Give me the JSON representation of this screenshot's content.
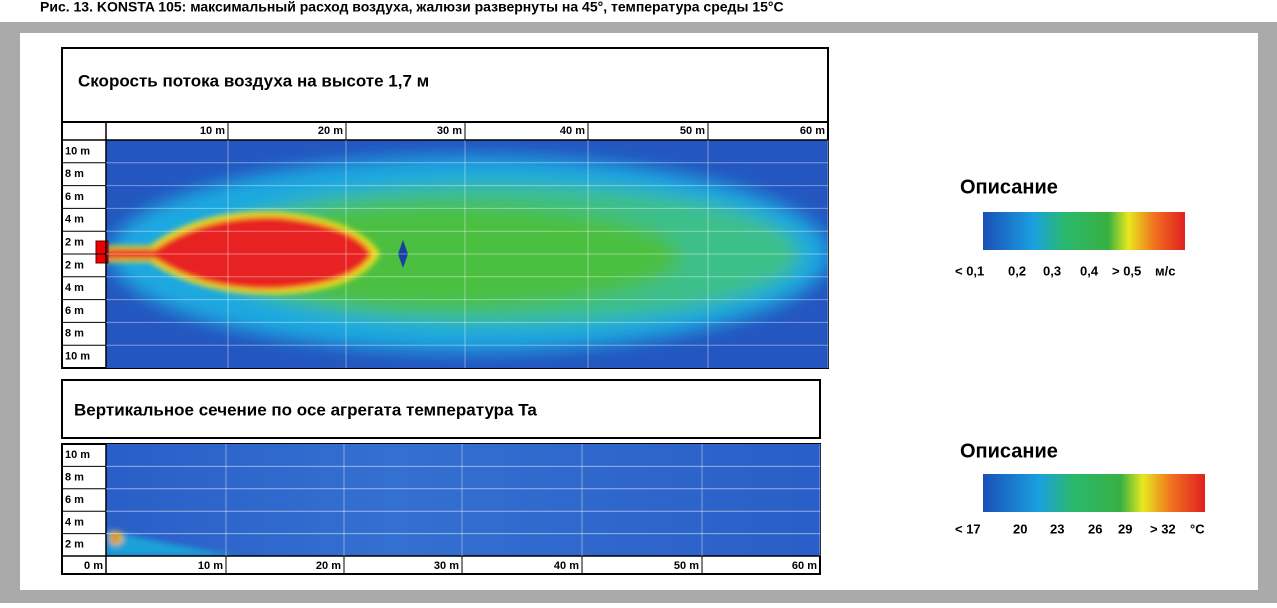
{
  "caption": "Рис. 13. KONSTA 105: максимальный расход воздуха, жалюзи развернуты на 45°, температура среды 15°C",
  "panels": [
    {
      "title": "Скорость потока воздуха на высоте 1,7 м",
      "x_labels": [
        "10 m",
        "20 m",
        "30 m",
        "40 m",
        "50 m",
        "60 m"
      ],
      "y_labels": [
        "10 m",
        "8 m",
        "6 m",
        "4 m",
        "2 m",
        "2 m",
        "4 m",
        "6 m",
        "8 m",
        "10 m"
      ]
    },
    {
      "title": "Вертикальное сечение по осе агрегата температура Ta",
      "x_labels": [
        "0 m",
        "10 m",
        "20 m",
        "30 m",
        "40 m",
        "50 m",
        "60 m"
      ],
      "y_labels": [
        "10 m",
        "8 m",
        "6 m",
        "4 m",
        "2 m"
      ]
    }
  ],
  "legends": [
    {
      "title": "Описание",
      "labels": [
        "< 0,1",
        "0,2",
        "0,3",
        "0,4",
        "> 0,5",
        "м/с"
      ]
    },
    {
      "title": "Описание",
      "labels": [
        "< 17",
        "20",
        "23",
        "26",
        "29",
        "> 32",
        "°C"
      ]
    }
  ]
}
